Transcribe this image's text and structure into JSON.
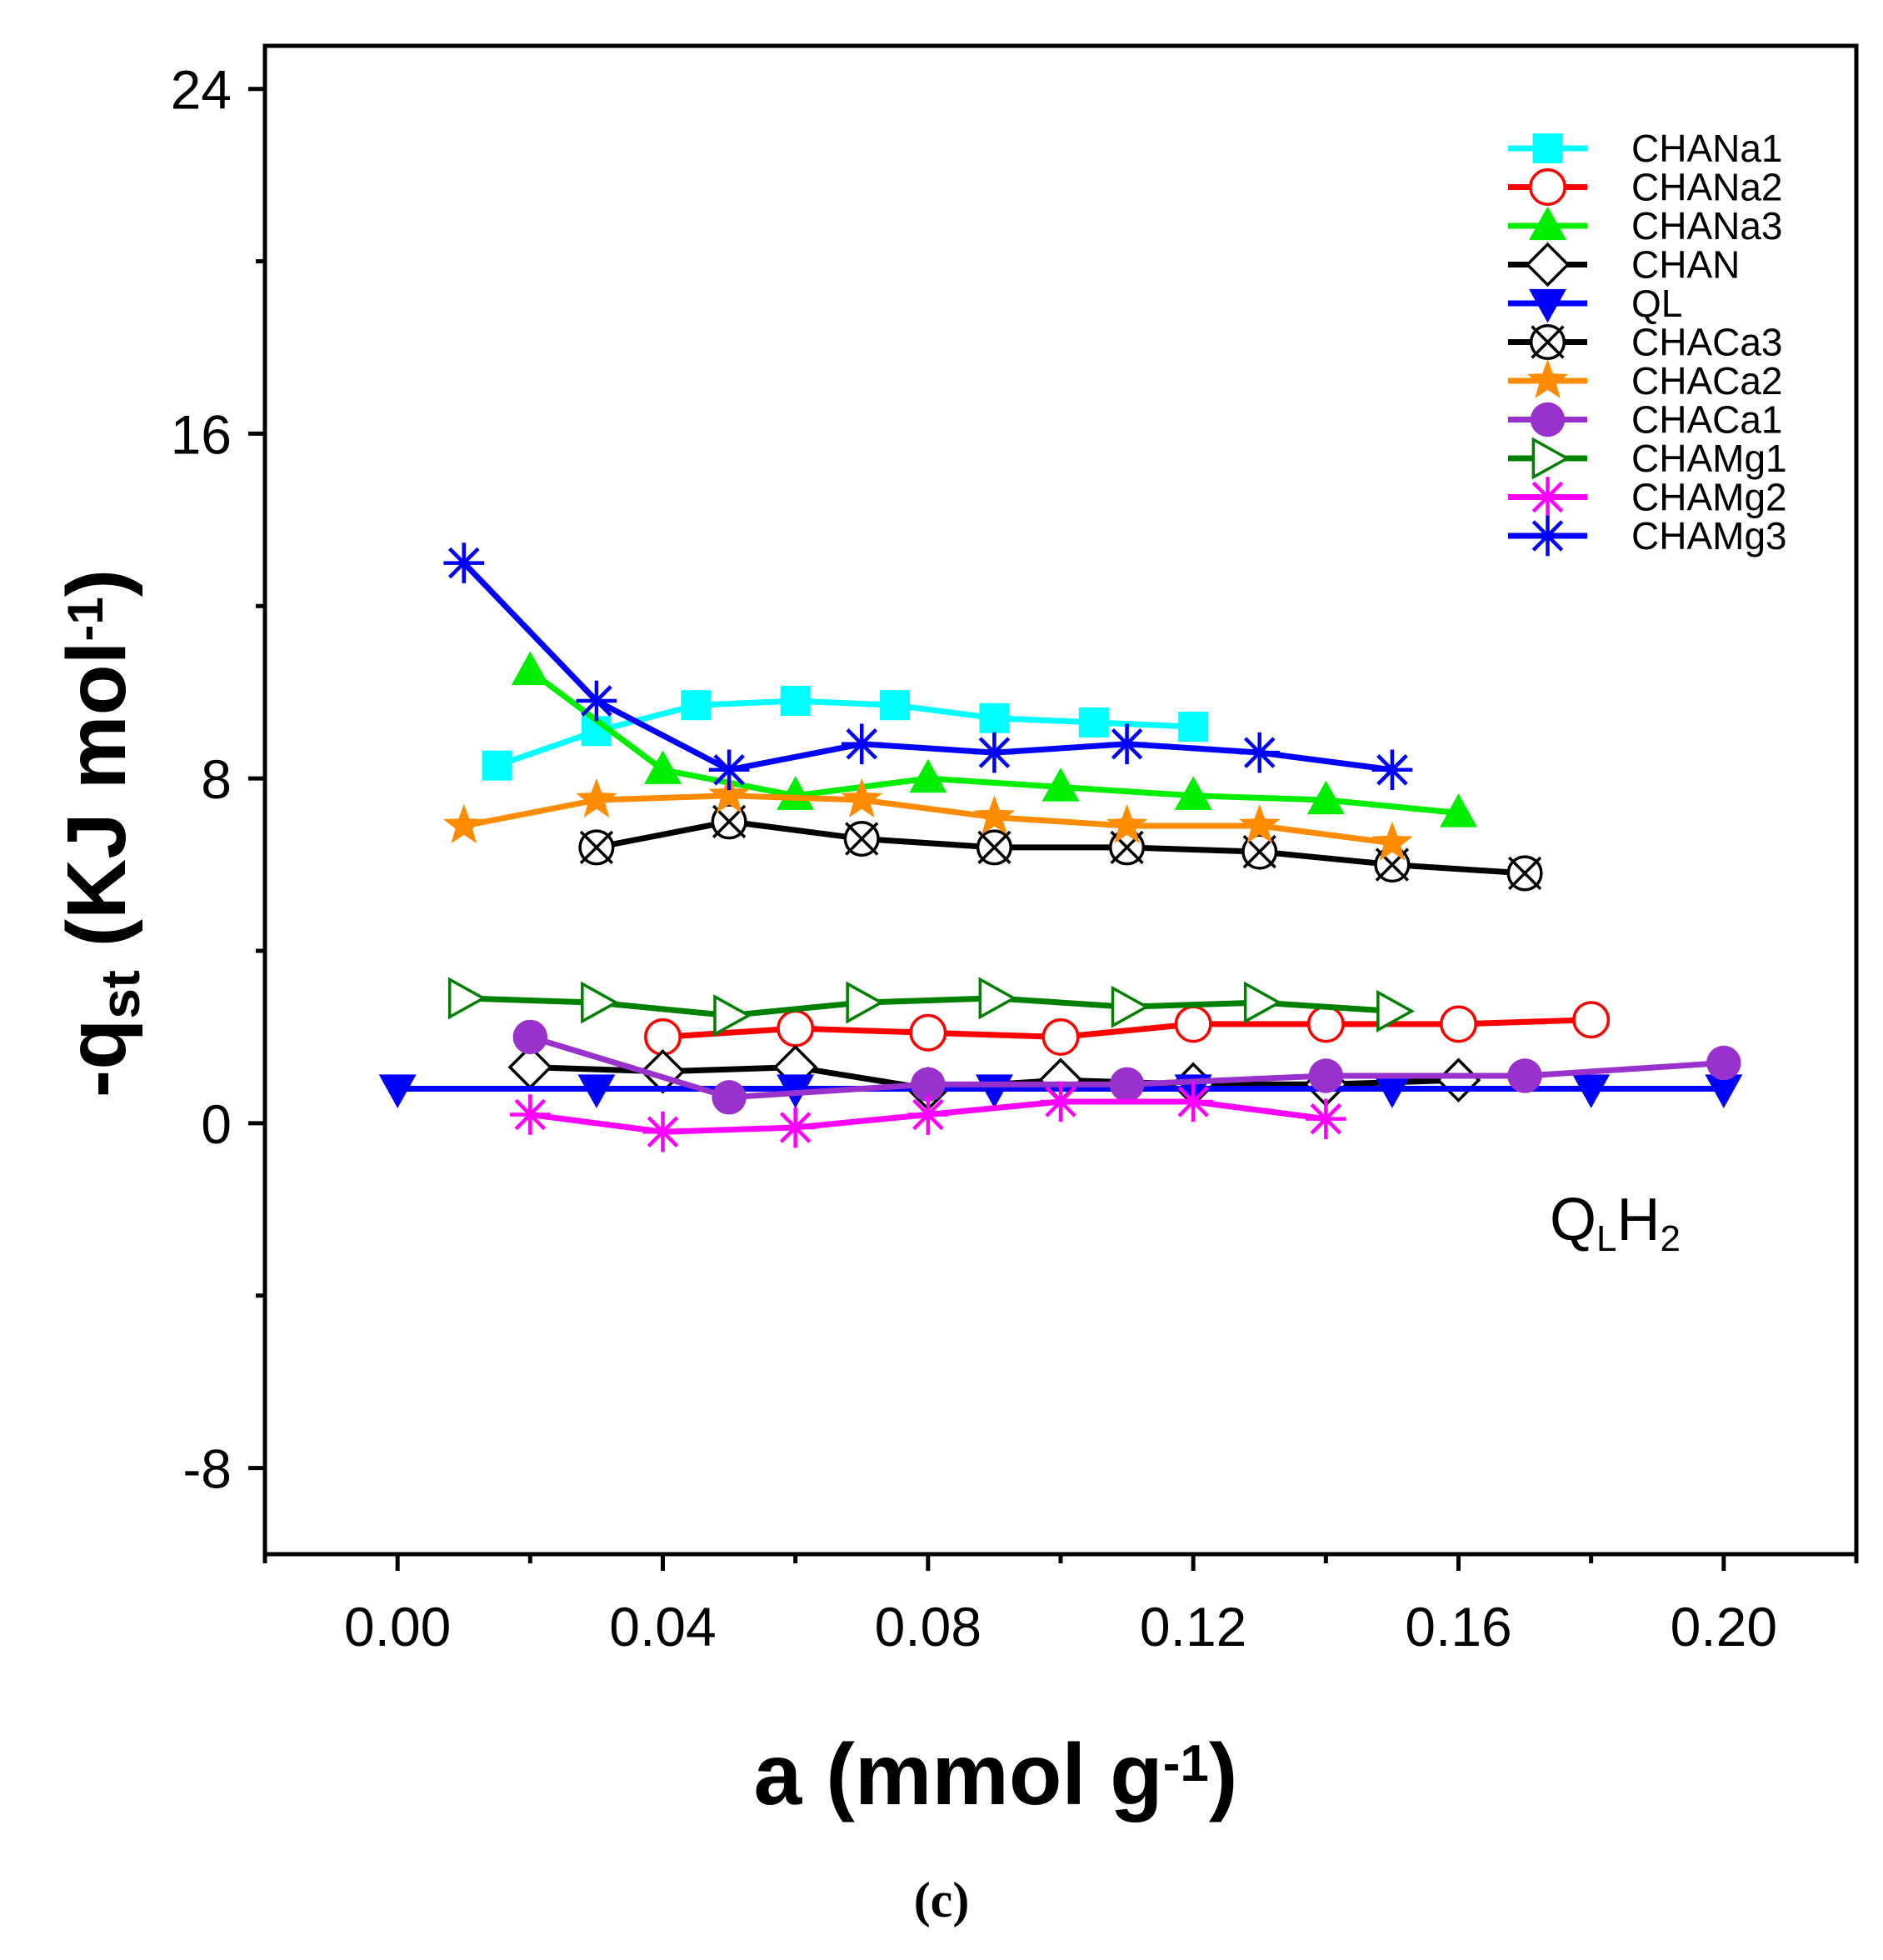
{
  "chart_data": {
    "type": "line",
    "xlabel": {
      "main": "a (mmol g",
      "sup": "-1",
      "close": ")"
    },
    "ylabel": {
      "prefix": "-q",
      "sub": "st",
      "mid": " (KJ mol",
      "sup": "-1",
      "close": ")"
    },
    "xlim": [
      -0.02,
      0.22
    ],
    "ylim": [
      -10,
      25
    ],
    "x_ticks": [
      0.0,
      0.04,
      0.08,
      0.12,
      0.16,
      0.2
    ],
    "x_tick_labels": [
      "0.00",
      "0.04",
      "0.08",
      "0.12",
      "0.16",
      "0.20"
    ],
    "x_minor_ticks": [
      -0.02,
      0.02,
      0.06,
      0.1,
      0.14,
      0.18,
      0.22
    ],
    "y_ticks": [
      -8,
      0,
      8,
      16,
      24
    ],
    "y_tick_labels": [
      "-8",
      "0",
      "8",
      "16",
      "24"
    ],
    "y_minor_ticks": [
      -4,
      4,
      12,
      20
    ],
    "annotation": {
      "q": "Q",
      "sub1": "L",
      "h": "H",
      "sub2": "2"
    },
    "caption": "(c)",
    "legend_position": "top-right",
    "series": [
      {
        "name": "CHANa1",
        "color": "#00FFFF",
        "marker": "square",
        "x": [
          0.015,
          0.03,
          0.045,
          0.06,
          0.075,
          0.09,
          0.105,
          0.12
        ],
        "y": [
          8.3,
          9.1,
          9.7,
          9.8,
          9.7,
          9.4,
          9.3,
          9.2
        ]
      },
      {
        "name": "CHANa2",
        "color": "#FF0000",
        "marker": "circle-open",
        "x": [
          0.04,
          0.06,
          0.08,
          0.1,
          0.12,
          0.14,
          0.16,
          0.18
        ],
        "y": [
          2.0,
          2.2,
          2.1,
          2.0,
          2.3,
          2.3,
          2.3,
          2.4
        ]
      },
      {
        "name": "CHANa3",
        "color": "#00EE00",
        "marker": "triangle-up",
        "x": [
          0.02,
          0.04,
          0.06,
          0.08,
          0.1,
          0.12,
          0.14,
          0.16
        ],
        "y": [
          10.5,
          8.2,
          7.6,
          8.0,
          7.8,
          7.6,
          7.5,
          7.2
        ]
      },
      {
        "name": "CHAN",
        "color": "#000000",
        "marker": "diamond-open",
        "x": [
          0.02,
          0.04,
          0.06,
          0.08,
          0.1,
          0.12,
          0.14,
          0.16
        ],
        "y": [
          1.3,
          1.2,
          1.3,
          0.8,
          1.0,
          0.9,
          0.9,
          1.0
        ]
      },
      {
        "name": "QL",
        "color": "#0000FF",
        "marker": "triangle-down",
        "x": [
          0.0,
          0.03,
          0.06,
          0.09,
          0.12,
          0.15,
          0.18,
          0.2
        ],
        "y": [
          0.8,
          0.8,
          0.8,
          0.8,
          0.8,
          0.8,
          0.8,
          0.8
        ]
      },
      {
        "name": "CHACa3",
        "color": "#000000",
        "marker": "circle-x",
        "x": [
          0.03,
          0.05,
          0.07,
          0.09,
          0.11,
          0.13,
          0.15,
          0.17
        ],
        "y": [
          6.4,
          7.0,
          6.6,
          6.4,
          6.4,
          6.3,
          6.0,
          5.8
        ]
      },
      {
        "name": "CHACa2",
        "color": "#FF8C00",
        "marker": "star",
        "x": [
          0.01,
          0.03,
          0.05,
          0.07,
          0.09,
          0.11,
          0.13,
          0.15
        ],
        "y": [
          6.9,
          7.5,
          7.6,
          7.5,
          7.1,
          6.9,
          6.9,
          6.5
        ]
      },
      {
        "name": "CHACa1",
        "color": "#9932CC",
        "marker": "circle",
        "x": [
          0.02,
          0.05,
          0.08,
          0.11,
          0.14,
          0.17,
          0.2
        ],
        "y": [
          2.0,
          0.6,
          0.9,
          0.9,
          1.1,
          1.1,
          1.4
        ]
      },
      {
        "name": "CHAMg1",
        "color": "#008000",
        "marker": "triangle-right-open",
        "x": [
          0.01,
          0.03,
          0.05,
          0.07,
          0.09,
          0.11,
          0.13,
          0.15
        ],
        "y": [
          2.9,
          2.8,
          2.5,
          2.8,
          2.9,
          2.7,
          2.8,
          2.6
        ]
      },
      {
        "name": "CHAMg2",
        "color": "#FF00FF",
        "marker": "asterisk",
        "x": [
          0.02,
          0.04,
          0.06,
          0.08,
          0.1,
          0.12,
          0.14
        ],
        "y": [
          0.2,
          -0.2,
          -0.1,
          0.2,
          0.5,
          0.5,
          0.1
        ]
      },
      {
        "name": "CHAMg3",
        "color": "#0000FF",
        "marker": "asterisk",
        "x": [
          0.01,
          0.03,
          0.05,
          0.07,
          0.09,
          0.11,
          0.13,
          0.15
        ],
        "y": [
          13.0,
          9.8,
          8.2,
          8.8,
          8.6,
          8.8,
          8.6,
          8.2
        ]
      }
    ]
  }
}
